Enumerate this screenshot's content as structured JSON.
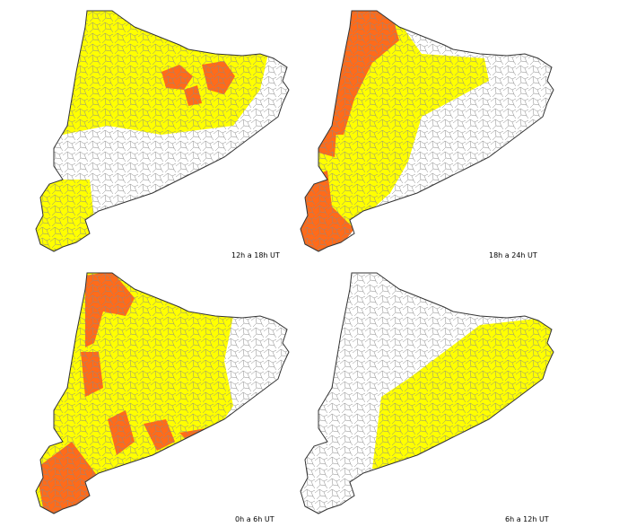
{
  "panels": [
    {
      "label": "12h a 18h UT"
    },
    {
      "label": "18h a 24h UT"
    },
    {
      "label": "0h a 6h UT"
    },
    {
      "label": "6h a 12h UT"
    }
  ]
}
